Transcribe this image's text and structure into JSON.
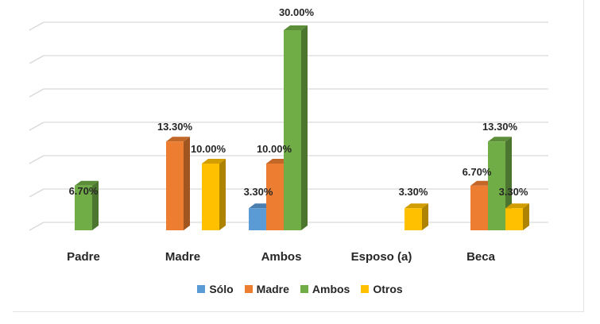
{
  "chart_data": {
    "type": "bar",
    "style": "3d-clustered-column",
    "title": "",
    "xlabel": "",
    "ylabel": "",
    "categories": [
      "Padre",
      "Madre",
      "Ambos",
      "Esposo (a)",
      "Beca"
    ],
    "series": [
      {
        "name": "Sólo",
        "color": "#5B9BD5",
        "values": [
          null,
          null,
          3.3,
          null,
          null
        ]
      },
      {
        "name": "Madre",
        "color": "#ED7D31",
        "values": [
          null,
          13.3,
          10.0,
          null,
          6.7
        ]
      },
      {
        "name": "Ambos",
        "color": "#70AD47",
        "values": [
          6.7,
          null,
          30.0,
          null,
          13.3
        ]
      },
      {
        "name": "Otros",
        "color": "#FFC000",
        "values": [
          null,
          10.0,
          null,
          3.3,
          3.3
        ]
      }
    ],
    "data_labels": {
      "Padre": {
        "Ambos": "6.70%"
      },
      "Madre": {
        "Madre": "13.30%",
        "Otros": "10.00%"
      },
      "Ambos": {
        "Sólo": "3.30%",
        "Madre": "10.00%",
        "Ambos": "30.00%"
      },
      "Esposo (a)": {
        "Otros": "3.30%"
      },
      "Beca": {
        "Madre": "6.70%",
        "Ambos": "13.30%",
        "Otros": "3.30%"
      }
    },
    "ylim": [
      0,
      30
    ],
    "grid": true,
    "y_axis_labels_visible": false,
    "legend_position": "bottom"
  },
  "legend": {
    "items": [
      {
        "label": "Sólo",
        "color": "#5B9BD5"
      },
      {
        "label": "Madre",
        "color": "#ED7D31"
      },
      {
        "label": "Ambos",
        "color": "#70AD47"
      },
      {
        "label": "Otros",
        "color": "#FFC000"
      }
    ]
  }
}
